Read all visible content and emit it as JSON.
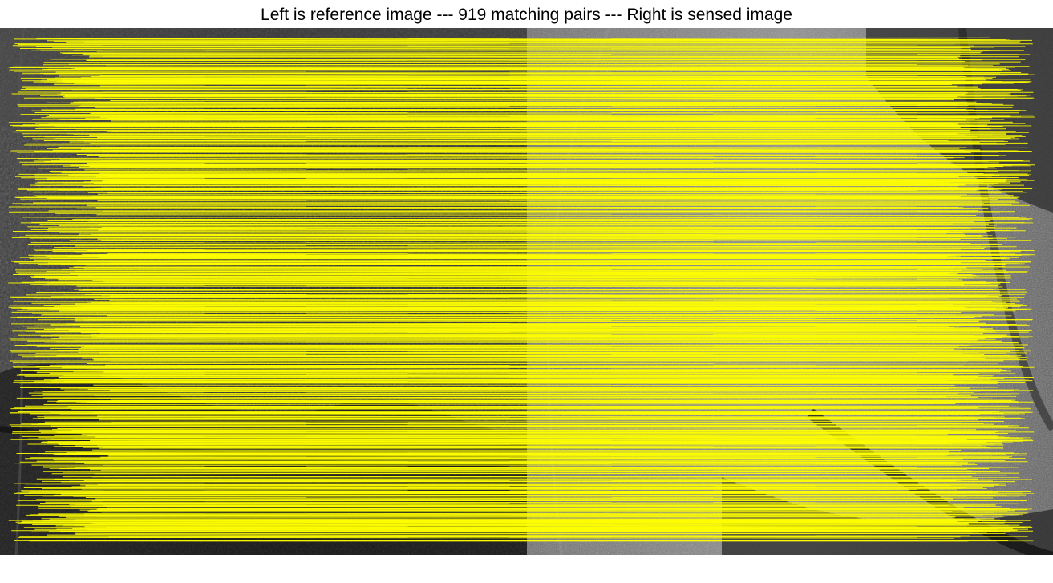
{
  "figure": {
    "title": "Left is reference image --- 919 matching pairs --- Right is sensed image"
  },
  "match_visual": {
    "pair_count": 919,
    "line_color": "#ffff00",
    "left_panel": "reference-image",
    "right_panel": "sensed-image"
  }
}
